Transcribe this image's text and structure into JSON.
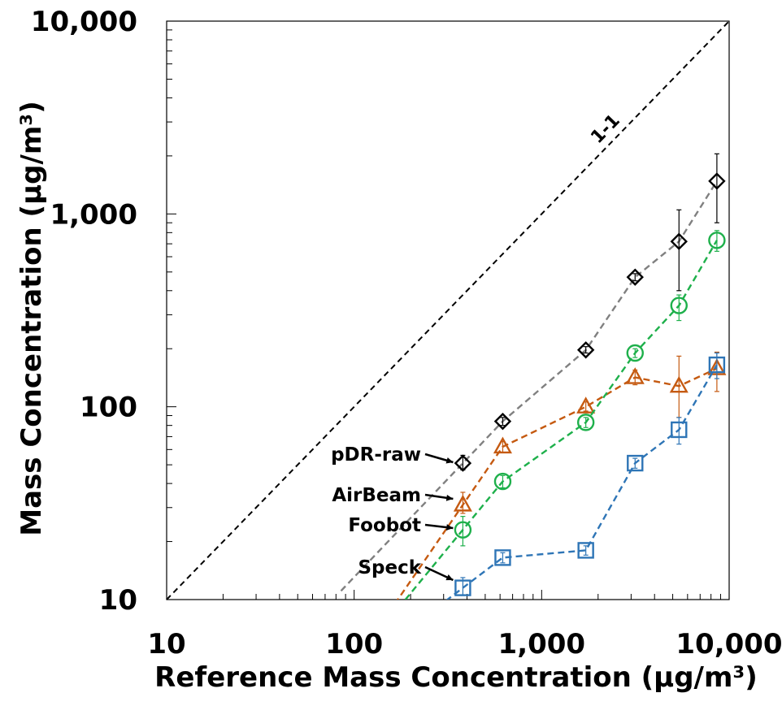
{
  "chart_data": {
    "type": "scatter",
    "title": "",
    "xlabel": "Reference Mass Concentration (µg/m³)",
    "ylabel": "Mass Concentration (µg/m³)",
    "x_scale": "log",
    "y_scale": "log",
    "xlim": [
      10,
      10000
    ],
    "ylim": [
      10,
      10000
    ],
    "x_ticks": [
      10,
      100,
      1000,
      10000
    ],
    "y_ticks": [
      10,
      100,
      1000,
      10000
    ],
    "x_tick_labels": [
      "10",
      "100",
      "1,000",
      "10,000"
    ],
    "y_tick_labels": [
      "10",
      "100",
      "1,000",
      "10,000"
    ],
    "grid": false,
    "reference_line": {
      "label": "1-1",
      "color": "#000000",
      "style": "dashed"
    },
    "series": [
      {
        "name": "pDR-raw",
        "marker": "diamond",
        "color": "#000000",
        "line_color": "#808080",
        "x": [
          380,
          620,
          1720,
          3150,
          5400,
          8600
        ],
        "y": [
          51,
          84,
          197,
          470,
          720,
          1480
        ],
        "y_err_low": [
          47,
          80,
          190,
          450,
          400,
          900
        ],
        "y_err_high": [
          56,
          88,
          205,
          490,
          1050,
          2050
        ]
      },
      {
        "name": "AirBeam",
        "marker": "triangle",
        "color": "#C55A11",
        "line_color": "#C55A11",
        "x": [
          380,
          620,
          1720,
          3150,
          5400,
          8600
        ],
        "y": [
          31,
          62,
          100,
          142,
          128,
          158
        ],
        "y_err_low": [
          28,
          58,
          95,
          130,
          88,
          120
        ],
        "y_err_high": [
          36,
          66,
          106,
          155,
          183,
          192
        ]
      },
      {
        "name": "Foobot",
        "marker": "circle",
        "color": "#1EB04B",
        "line_color": "#1EB04B",
        "x": [
          380,
          620,
          1720,
          3150,
          5400,
          8600
        ],
        "y": [
          23,
          41,
          83,
          190,
          335,
          730
        ],
        "y_err_low": [
          19,
          38,
          78,
          180,
          280,
          640
        ],
        "y_err_high": [
          27,
          44,
          88,
          200,
          380,
          820
        ]
      },
      {
        "name": "Speck",
        "marker": "square",
        "color": "#2E75B6",
        "line_color": "#2E75B6",
        "x": [
          380,
          620,
          1720,
          3150,
          5400,
          8600
        ],
        "y": [
          11.5,
          16.5,
          18,
          51,
          76,
          165
        ],
        "y_err_low": [
          10.5,
          15.5,
          17,
          48,
          64,
          140
        ],
        "y_err_high": [
          13,
          17.5,
          19,
          54,
          88,
          190
        ]
      }
    ]
  }
}
